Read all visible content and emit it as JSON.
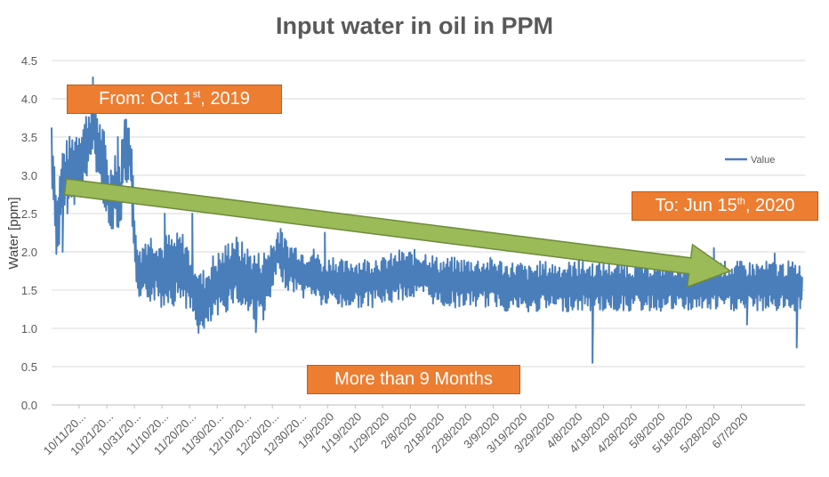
{
  "chart_data": {
    "type": "line",
    "title": "Input water in oil in PPM",
    "ylabel": "Water [ppm]",
    "xlabel": "",
    "ylim": [
      0,
      4.5
    ],
    "yticks": [
      "0.0",
      "0.5",
      "1.0",
      "1.5",
      "2.0",
      "2.5",
      "3.0",
      "3.5",
      "4.0",
      "4.5"
    ],
    "categories": [
      "10/11/20...",
      "10/21/20...",
      "10/31/20...",
      "11/10/20...",
      "11/20/20...",
      "11/30/20...",
      "12/10/20...",
      "12/20/20...",
      "12/30/20...",
      "1/9/2020",
      "1/19/2020",
      "1/29/2020",
      "2/8/2020",
      "2/18/2020",
      "2/28/2020",
      "3/9/2020",
      "3/19/2020",
      "3/29/2020",
      "4/8/2020",
      "4/18/2020",
      "4/28/2020",
      "5/8/2020",
      "5/18/2020",
      "5/28/2020",
      "6/7/2020"
    ],
    "series": [
      {
        "name": "Value",
        "color": "#4a7ebb",
        "keyframes_day_value": [
          [
            0,
            3.3
          ],
          [
            2,
            2.3
          ],
          [
            4,
            2.9
          ],
          [
            6,
            3.0
          ],
          [
            8,
            3.1
          ],
          [
            10,
            3.2
          ],
          [
            12,
            3.3
          ],
          [
            14,
            3.5
          ],
          [
            15,
            3.8
          ],
          [
            17,
            3.3
          ],
          [
            19,
            3.1
          ],
          [
            21,
            2.6
          ],
          [
            23,
            2.9
          ],
          [
            25,
            2.7
          ],
          [
            26,
            3.3
          ],
          [
            28,
            3.4
          ],
          [
            29,
            3.0
          ],
          [
            30,
            2.1
          ],
          [
            32,
            1.6
          ],
          [
            34,
            1.8
          ],
          [
            36,
            1.8
          ],
          [
            38,
            1.8
          ],
          [
            40,
            1.7
          ],
          [
            42,
            1.8
          ],
          [
            44,
            1.75
          ],
          [
            46,
            1.8
          ],
          [
            48,
            1.8
          ],
          [
            50,
            1.6
          ],
          [
            52,
            1.5
          ],
          [
            54,
            1.3
          ],
          [
            56,
            1.35
          ],
          [
            58,
            1.5
          ],
          [
            60,
            1.55
          ],
          [
            62,
            1.6
          ],
          [
            64,
            1.7
          ],
          [
            66,
            1.8
          ],
          [
            68,
            1.7
          ],
          [
            70,
            1.65
          ],
          [
            72,
            1.6
          ],
          [
            74,
            1.55
          ],
          [
            76,
            1.55
          ],
          [
            78,
            1.6
          ],
          [
            80,
            1.8
          ],
          [
            82,
            2.0
          ],
          [
            84,
            1.9
          ],
          [
            86,
            1.8
          ],
          [
            88,
            1.8
          ],
          [
            90,
            1.75
          ],
          [
            92,
            1.7
          ],
          [
            94,
            1.75
          ],
          [
            96,
            1.7
          ],
          [
            98,
            1.6
          ],
          [
            100,
            1.6
          ],
          [
            102,
            1.65
          ],
          [
            104,
            1.6
          ],
          [
            106,
            1.55
          ],
          [
            108,
            1.6
          ],
          [
            110,
            1.6
          ],
          [
            112,
            1.6
          ],
          [
            114,
            1.6
          ],
          [
            116,
            1.6
          ],
          [
            118,
            1.65
          ],
          [
            120,
            1.6
          ],
          [
            122,
            1.65
          ],
          [
            124,
            1.65
          ],
          [
            126,
            1.7
          ],
          [
            128,
            1.7
          ],
          [
            130,
            1.7
          ],
          [
            132,
            1.7
          ],
          [
            134,
            1.7
          ],
          [
            136,
            1.7
          ],
          [
            138,
            1.65
          ],
          [
            140,
            1.6
          ],
          [
            142,
            1.6
          ],
          [
            144,
            1.6
          ],
          [
            146,
            1.6
          ],
          [
            148,
            1.6
          ],
          [
            150,
            1.6
          ],
          [
            152,
            1.6
          ],
          [
            154,
            1.6
          ],
          [
            156,
            1.6
          ],
          [
            158,
            1.6
          ],
          [
            160,
            1.6
          ],
          [
            162,
            1.6
          ],
          [
            164,
            1.55
          ],
          [
            166,
            1.55
          ],
          [
            168,
            1.55
          ],
          [
            170,
            1.55
          ],
          [
            172,
            1.5
          ],
          [
            174,
            1.5
          ],
          [
            176,
            1.55
          ],
          [
            178,
            1.55
          ]
        ],
        "dips": [
          [
            4,
            2.0
          ],
          [
            22,
            2.45
          ],
          [
            74,
            0.95
          ],
          [
            196,
            0.55
          ],
          [
            252,
            1.05
          ],
          [
            270,
            0.75
          ]
        ],
        "peaks": [
          [
            15,
            3.78
          ],
          [
            24,
            3.5
          ],
          [
            28,
            3.5
          ],
          [
            41,
            2.5
          ],
          [
            51,
            2.5
          ],
          [
            83,
            2.3
          ],
          [
            99,
            2.25
          ],
          [
            191,
            2.1
          ],
          [
            240,
            2.05
          ],
          [
            262,
            1.98
          ]
        ]
      }
    ],
    "legend": {
      "position": "right",
      "entries": [
        "Value"
      ]
    },
    "annotations": {
      "from_label": "From: Oct 1st, 2019",
      "to_label": "To: Jun 15th, 2020",
      "duration_label": "More than 9 Months",
      "trend_arrow": {
        "start": {
          "day": 5,
          "value": 2.85
        },
        "end": {
          "day": 246,
          "value": 1.75
        }
      }
    }
  },
  "callouts": {
    "from": {
      "pre": "From: Oct 1",
      "sup": "st",
      "post": ", 2019"
    },
    "to": {
      "pre": "To: Jun 15",
      "sup": "th",
      "post": ", 2020"
    },
    "duration": "More than 9 Months"
  }
}
